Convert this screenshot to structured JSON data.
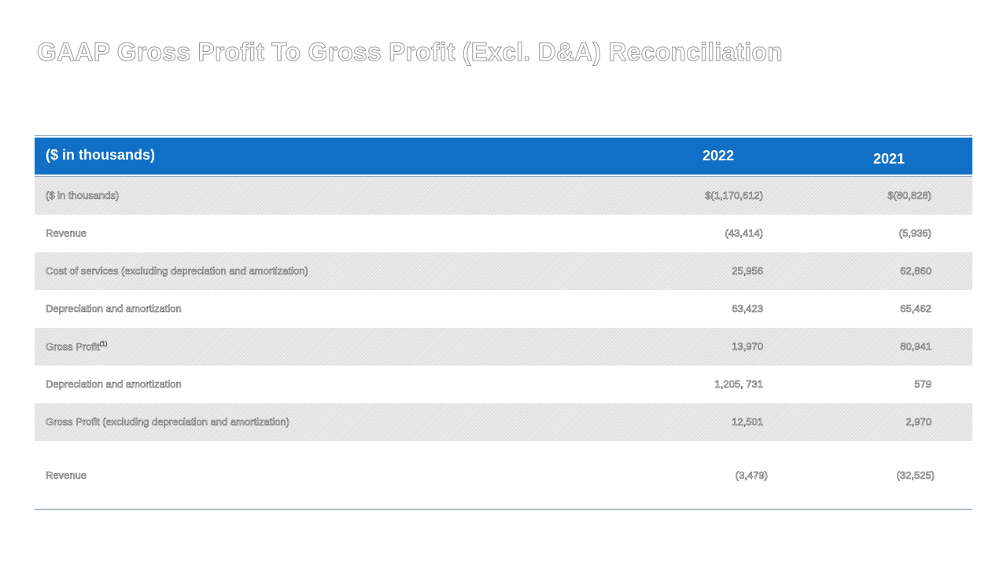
{
  "title": "GAAP Gross Profit To Gross Profit (Excl. D&A) Reconciliation",
  "table": {
    "header": {
      "label": "($ in thousands)",
      "col_2022": "2022",
      "col_2021": "2021"
    },
    "rows": [
      {
        "label": "($ in thousands)",
        "v2022": "$(1,170,612)",
        "v2021": "$(80,828)"
      },
      {
        "label": "Revenue",
        "v2022": "(43,414)",
        "v2021": "(5,936)"
      },
      {
        "label": "Cost of services (excluding depreciation and amortization)",
        "v2022": "25,956",
        "v2021": "62,860"
      },
      {
        "label": "Depreciation and amortization",
        "v2022": "63,423",
        "v2021": "65,462"
      },
      {
        "label": "Gross Profit",
        "label_sup": "(1)",
        "v2022": "13,970",
        "v2021": "80,941"
      },
      {
        "label": "Depreciation and amortization",
        "v2022": "1,205, 731",
        "v2021": "579"
      },
      {
        "label": "Gross Profit (excluding depreciation and amortization)",
        "v2022": "12,501",
        "v2021": "2,970"
      },
      {
        "label": "Revenue",
        "v2022": "(3,479)",
        "v2021": "(32,525)"
      }
    ]
  }
}
